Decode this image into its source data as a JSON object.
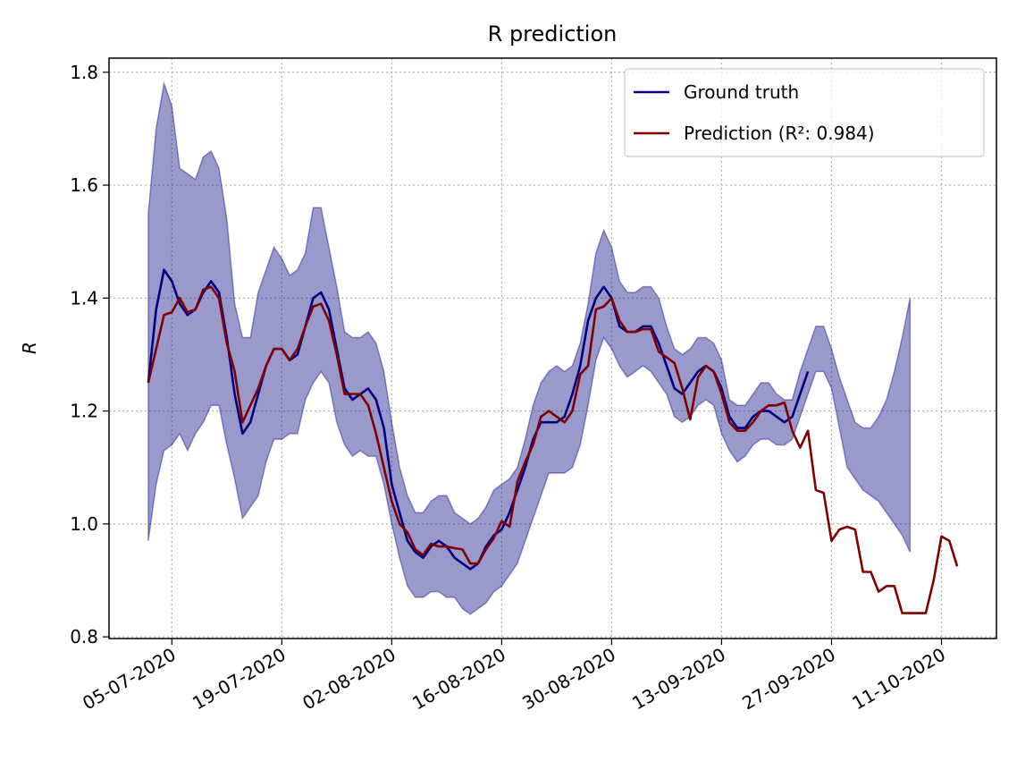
{
  "chart_data": {
    "type": "line",
    "title": "R prediction",
    "ylabel": "R",
    "x": [
      "02-07-2020",
      "03-07-2020",
      "04-07-2020",
      "05-07-2020",
      "06-07-2020",
      "07-07-2020",
      "08-07-2020",
      "09-07-2020",
      "10-07-2020",
      "11-07-2020",
      "12-07-2020",
      "13-07-2020",
      "14-07-2020",
      "15-07-2020",
      "16-07-2020",
      "17-07-2020",
      "18-07-2020",
      "19-07-2020",
      "20-07-2020",
      "21-07-2020",
      "22-07-2020",
      "23-07-2020",
      "24-07-2020",
      "25-07-2020",
      "26-07-2020",
      "27-07-2020",
      "28-07-2020",
      "29-07-2020",
      "30-07-2020",
      "31-07-2020",
      "01-08-2020",
      "02-08-2020",
      "03-08-2020",
      "04-08-2020",
      "05-08-2020",
      "06-08-2020",
      "07-08-2020",
      "08-08-2020",
      "09-08-2020",
      "10-08-2020",
      "11-08-2020",
      "12-08-2020",
      "13-08-2020",
      "14-08-2020",
      "15-08-2020",
      "16-08-2020",
      "17-08-2020",
      "18-08-2020",
      "19-08-2020",
      "20-08-2020",
      "21-08-2020",
      "22-08-2020",
      "23-08-2020",
      "24-08-2020",
      "25-08-2020",
      "26-08-2020",
      "27-08-2020",
      "28-08-2020",
      "29-08-2020",
      "30-08-2020",
      "31-08-2020",
      "01-09-2020",
      "02-09-2020",
      "03-09-2020",
      "04-09-2020",
      "05-09-2020",
      "06-09-2020",
      "07-09-2020",
      "08-09-2020",
      "09-09-2020",
      "10-09-2020",
      "11-09-2020",
      "12-09-2020",
      "13-09-2020",
      "14-09-2020",
      "15-09-2020",
      "16-09-2020",
      "17-09-2020",
      "18-09-2020",
      "19-09-2020",
      "20-09-2020",
      "21-09-2020",
      "22-09-2020",
      "23-09-2020",
      "24-09-2020",
      "25-09-2020",
      "26-09-2020",
      "27-09-2020",
      "28-09-2020",
      "29-09-2020",
      "30-09-2020",
      "01-10-2020",
      "02-10-2020",
      "03-10-2020",
      "04-10-2020",
      "05-10-2020",
      "06-10-2020",
      "07-10-2020",
      "08-10-2020",
      "09-10-2020",
      "10-10-2020",
      "11-10-2020",
      "12-10-2020",
      "13-10-2020"
    ],
    "series": [
      {
        "name": "Ground truth",
        "color": "#000080",
        "values": [
          1.25,
          1.38,
          1.45,
          1.43,
          1.39,
          1.37,
          1.38,
          1.41,
          1.43,
          1.41,
          1.33,
          1.23,
          1.16,
          1.18,
          1.23,
          1.28,
          1.31,
          1.31,
          1.29,
          1.3,
          1.35,
          1.4,
          1.41,
          1.38,
          1.31,
          1.24,
          1.22,
          1.23,
          1.24,
          1.22,
          1.17,
          1.07,
          1.02,
          0.97,
          0.95,
          0.94,
          0.96,
          0.97,
          0.96,
          0.94,
          0.93,
          0.92,
          0.93,
          0.96,
          0.98,
          0.99,
          1.02,
          1.06,
          1.1,
          1.15,
          1.18,
          1.18,
          1.18,
          1.19,
          1.23,
          1.28,
          1.36,
          1.4,
          1.42,
          1.4,
          1.35,
          1.34,
          1.34,
          1.35,
          1.35,
          1.32,
          1.28,
          1.24,
          1.23,
          1.25,
          1.27,
          1.28,
          1.27,
          1.24,
          1.19,
          1.17,
          1.17,
          1.19,
          1.2,
          1.2,
          1.19,
          1.18,
          1.19,
          1.23,
          1.27,
          null,
          null,
          null,
          null,
          null,
          null,
          null,
          null,
          null,
          null,
          null,
          null,
          null,
          null,
          null,
          null,
          null,
          null,
          null
        ]
      },
      {
        "name": "Prediction (R²: 0.984)",
        "color": "#800000",
        "values": [
          1.25,
          1.31,
          1.37,
          1.375,
          1.4,
          1.375,
          1.38,
          1.415,
          1.42,
          1.4,
          1.32,
          1.27,
          1.18,
          1.21,
          1.24,
          1.28,
          1.31,
          1.31,
          1.29,
          1.31,
          1.35,
          1.385,
          1.39,
          1.36,
          1.3,
          1.23,
          1.23,
          1.23,
          1.21,
          1.16,
          1.1,
          1.04,
          1.0,
          0.985,
          0.955,
          0.945,
          0.965,
          0.96,
          0.96,
          0.957,
          0.955,
          0.93,
          0.93,
          0.955,
          0.975,
          1.005,
          0.995,
          1.075,
          1.11,
          1.14,
          1.19,
          1.2,
          1.19,
          1.18,
          1.2,
          1.265,
          1.28,
          1.38,
          1.385,
          1.4,
          1.36,
          1.34,
          1.34,
          1.345,
          1.345,
          1.305,
          1.295,
          1.285,
          1.24,
          1.185,
          1.26,
          1.28,
          1.27,
          1.23,
          1.18,
          1.165,
          1.165,
          1.18,
          1.2,
          1.21,
          1.21,
          1.215,
          1.165,
          1.135,
          1.165,
          1.06,
          1.055,
          0.97,
          0.99,
          0.995,
          0.99,
          0.915,
          0.915,
          0.88,
          0.89,
          0.89,
          0.842,
          0.842,
          0.842,
          0.842,
          0.9,
          0.978,
          0.97,
          0.925
        ]
      }
    ],
    "band": {
      "color": "#000080",
      "upper": [
        1.55,
        1.7,
        1.78,
        1.74,
        1.63,
        1.62,
        1.61,
        1.65,
        1.66,
        1.63,
        1.54,
        1.39,
        1.33,
        1.33,
        1.41,
        1.45,
        1.49,
        1.47,
        1.44,
        1.45,
        1.48,
        1.56,
        1.56,
        1.49,
        1.42,
        1.34,
        1.33,
        1.33,
        1.34,
        1.32,
        1.27,
        1.18,
        1.1,
        1.05,
        1.02,
        1.02,
        1.04,
        1.05,
        1.05,
        1.02,
        1.01,
        1.0,
        1.01,
        1.03,
        1.06,
        1.07,
        1.08,
        1.1,
        1.15,
        1.21,
        1.25,
        1.27,
        1.28,
        1.27,
        1.28,
        1.32,
        1.39,
        1.48,
        1.52,
        1.49,
        1.43,
        1.41,
        1.41,
        1.42,
        1.42,
        1.4,
        1.35,
        1.31,
        1.3,
        1.31,
        1.33,
        1.33,
        1.32,
        1.29,
        1.22,
        1.21,
        1.21,
        1.23,
        1.25,
        1.25,
        1.23,
        1.22,
        1.22,
        1.27,
        1.31,
        1.35,
        1.35,
        1.31,
        1.26,
        1.22,
        1.18,
        1.17,
        1.17,
        1.19,
        1.22,
        1.27,
        1.33,
        1.4,
        null,
        null,
        null,
        null,
        null,
        null
      ],
      "lower": [
        0.97,
        1.07,
        1.13,
        1.14,
        1.16,
        1.13,
        1.16,
        1.18,
        1.21,
        1.21,
        1.14,
        1.08,
        1.01,
        1.03,
        1.05,
        1.11,
        1.15,
        1.15,
        1.16,
        1.16,
        1.22,
        1.25,
        1.27,
        1.25,
        1.18,
        1.14,
        1.12,
        1.13,
        1.12,
        1.12,
        1.07,
        1.0,
        0.94,
        0.89,
        0.87,
        0.87,
        0.88,
        0.88,
        0.87,
        0.87,
        0.85,
        0.84,
        0.85,
        0.86,
        0.88,
        0.89,
        0.91,
        0.93,
        0.97,
        1.01,
        1.05,
        1.09,
        1.09,
        1.09,
        1.1,
        1.14,
        1.21,
        1.29,
        1.33,
        1.31,
        1.28,
        1.26,
        1.27,
        1.28,
        1.27,
        1.25,
        1.23,
        1.19,
        1.18,
        1.19,
        1.21,
        1.22,
        1.21,
        1.16,
        1.13,
        1.11,
        1.12,
        1.14,
        1.15,
        1.15,
        1.14,
        1.14,
        1.15,
        1.19,
        1.23,
        1.27,
        1.27,
        1.24,
        1.17,
        1.1,
        1.08,
        1.06,
        1.05,
        1.04,
        1.02,
        1.0,
        0.98,
        0.95,
        null,
        null,
        null,
        null,
        null,
        null
      ]
    },
    "xlim": [
      "27-06-2020",
      "18-10-2020"
    ],
    "xticks": [
      "05-07-2020",
      "19-07-2020",
      "02-08-2020",
      "16-08-2020",
      "30-08-2020",
      "13-09-2020",
      "27-09-2020",
      "11-10-2020"
    ],
    "ylim": [
      0.797,
      1.825
    ],
    "yticks": [
      0.8,
      {
        "value": 1,
        "label": "1.0"
      },
      1.2,
      1.4,
      1.6,
      1.8
    ],
    "grid": true,
    "legend": "upper right"
  }
}
